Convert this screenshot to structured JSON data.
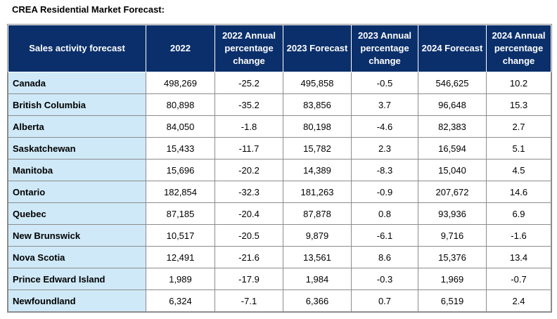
{
  "title": "CREA Residential Market Forecast:",
  "headers": [
    "Sales activity forecast",
    "2022",
    "2022 Annual percentage change",
    "2023 Forecast",
    "2023 Annual percentage change",
    "2024 Forecast",
    "2024 Annual percentage change"
  ],
  "rows": [
    [
      "Canada",
      "498,269",
      "-25.2",
      "495,858",
      "-0.5",
      "546,625",
      "10.2"
    ],
    [
      "British Columbia",
      "80,898",
      "-35.2",
      "83,856",
      "3.7",
      "96,648",
      "15.3"
    ],
    [
      "Alberta",
      "84,050",
      "-1.8",
      "80,198",
      "-4.6",
      "82,383",
      "2.7"
    ],
    [
      "Saskatchewan",
      "15,433",
      "-11.7",
      "15,782",
      "2.3",
      "16,594",
      "5.1"
    ],
    [
      "Manitoba",
      "15,696",
      "-20.2",
      "14,389",
      "-8.3",
      "15,040",
      "4.5"
    ],
    [
      "Ontario",
      "182,854",
      "-32.3",
      "181,263",
      "-0.9",
      "207,672",
      "14.6"
    ],
    [
      "Quebec",
      "87,185",
      "-20.4",
      "87,878",
      "0.8",
      "93,936",
      "6.9"
    ],
    [
      "New Brunswick",
      "10,517",
      "-20.5",
      "9,879",
      "-6.1",
      "9,716",
      "-1.6"
    ],
    [
      "Nova Scotia",
      "12,491",
      "-21.6",
      "13,561",
      "8.6",
      "15,376",
      "13.4"
    ],
    [
      "Prince Edward Island",
      "1,989",
      "-17.9",
      "1,984",
      "-0.3",
      "1,969",
      "-0.7"
    ],
    [
      "Newfoundland",
      "6,324",
      "-7.1",
      "6,366",
      "0.7",
      "6,519",
      "2.4"
    ]
  ],
  "colors": {
    "header_bg": "#0a2f6b",
    "header_text": "#ffffff",
    "name_bg": "#cfe9f8"
  }
}
